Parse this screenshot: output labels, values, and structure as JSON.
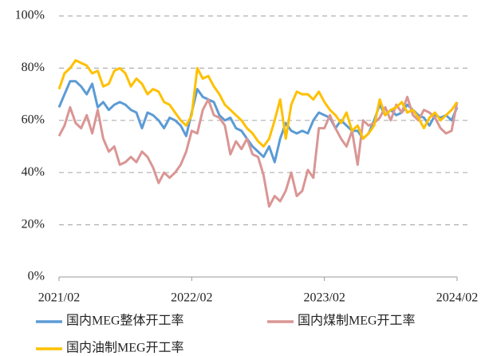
{
  "chart_data": {
    "type": "line",
    "categories": [
      "2021/02",
      null,
      null,
      null,
      null,
      null,
      null,
      null,
      null,
      null,
      null,
      null,
      null,
      null,
      null,
      null,
      null,
      null,
      null,
      null,
      null,
      null,
      null,
      null,
      "2022/02",
      null,
      null,
      null,
      null,
      null,
      null,
      null,
      null,
      null,
      null,
      null,
      null,
      null,
      null,
      null,
      null,
      null,
      null,
      null,
      null,
      null,
      null,
      null,
      "2023/02",
      null,
      null,
      null,
      null,
      null,
      null,
      null,
      null,
      null,
      null,
      null,
      null,
      null,
      null,
      null,
      null,
      null,
      null,
      null,
      null,
      null,
      null,
      null,
      "2024/02"
    ],
    "series": [
      {
        "name": "国内MEG整体开工率",
        "color": "#5b9bd5",
        "values": [
          65,
          70,
          75,
          75,
          73,
          70,
          74,
          65,
          67,
          64,
          66,
          67,
          66,
          64,
          63,
          57,
          63,
          62,
          60,
          57,
          61,
          60,
          58,
          54,
          63,
          72,
          69,
          68,
          67,
          62,
          60,
          61,
          57,
          56,
          53,
          50,
          48,
          46,
          50,
          44,
          53,
          59,
          56,
          55,
          56,
          55,
          60,
          63,
          62,
          61,
          57,
          60,
          58,
          56,
          56,
          53,
          55,
          60,
          66,
          62,
          64,
          62,
          63,
          66,
          64,
          62,
          61,
          58,
          62,
          61,
          62,
          60,
          65
        ]
      },
      {
        "name": "国内煤制MEG开工率",
        "color": "#d99694",
        "values": [
          54,
          58,
          65,
          59,
          57,
          62,
          55,
          64,
          53,
          48,
          50,
          43,
          44,
          46,
          44,
          48,
          46,
          42,
          36,
          40,
          38,
          40,
          43,
          48,
          56,
          55,
          64,
          68,
          62,
          61,
          58,
          47,
          52,
          49,
          53,
          47,
          46,
          39,
          27,
          31,
          29,
          33,
          40,
          31,
          33,
          41,
          38,
          57,
          57,
          62,
          57,
          53,
          50,
          56,
          43,
          60,
          58,
          59,
          61,
          65,
          60,
          66,
          63,
          69,
          62,
          60,
          64,
          63,
          61,
          57,
          55,
          56,
          67
        ]
      },
      {
        "name": "国内油制MEG开工率",
        "color": "#ffc000",
        "values": [
          72,
          78,
          80,
          83,
          82,
          81,
          78,
          79,
          73,
          74,
          79,
          80,
          78,
          73,
          76,
          74,
          70,
          72,
          71,
          67,
          66,
          63,
          60,
          58,
          62,
          80,
          76,
          77,
          73,
          70,
          66,
          64,
          62,
          60,
          57,
          55,
          52,
          50,
          53,
          60,
          68,
          53,
          66,
          71,
          70,
          70,
          68,
          71,
          67,
          64,
          62,
          59,
          63,
          56,
          58,
          53,
          55,
          58,
          68,
          62,
          64,
          65,
          67,
          63,
          64,
          61,
          57,
          61,
          63,
          60,
          62,
          64,
          67
        ]
      }
    ],
    "ylim": [
      0,
      100
    ],
    "yticks": [
      {
        "value": 0,
        "label": "0%"
      },
      {
        "value": 20,
        "label": "20%"
      },
      {
        "value": 40,
        "label": "40%"
      },
      {
        "value": 60,
        "label": "60%"
      },
      {
        "value": 80,
        "label": "80%"
      },
      {
        "value": 100,
        "label": "100%"
      }
    ],
    "grid": true
  }
}
